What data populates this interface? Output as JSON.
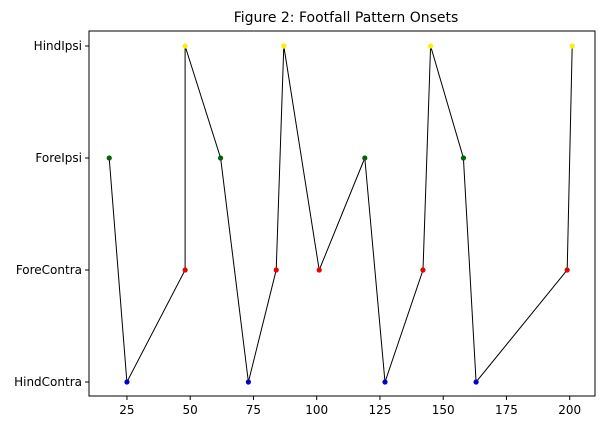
{
  "chart_data": {
    "type": "line",
    "title": "Figure 2: Footfall Pattern Onsets",
    "xlabel": "",
    "ylabel": "",
    "xlim": [
      10,
      210
    ],
    "x_ticks": [
      "25",
      "50",
      "75",
      "100",
      "125",
      "150",
      "175",
      "200"
    ],
    "x_tick_values": [
      25,
      50,
      75,
      100,
      125,
      150,
      175,
      200
    ],
    "categories": [
      "HindContra",
      "ForeContra",
      "ForeIpsi",
      "HindIpsi"
    ],
    "grid": false,
    "legend": "none",
    "line_color": "#000000",
    "category_colors": {
      "HindContra": "#0000cc",
      "ForeContra": "#ee0000",
      "ForeIpsi": "#006600",
      "HindIpsi": "#ffee00"
    },
    "points": [
      {
        "x": 18,
        "y": "ForeIpsi"
      },
      {
        "x": 25,
        "y": "HindContra"
      },
      {
        "x": 48,
        "y": "ForeContra"
      },
      {
        "x": 48,
        "y": "HindIpsi"
      },
      {
        "x": 62,
        "y": "ForeIpsi"
      },
      {
        "x": 73,
        "y": "HindContra"
      },
      {
        "x": 84,
        "y": "ForeContra"
      },
      {
        "x": 87,
        "y": "HindIpsi"
      },
      {
        "x": 101,
        "y": "ForeContra"
      },
      {
        "x": 119,
        "y": "ForeIpsi"
      },
      {
        "x": 127,
        "y": "HindContra"
      },
      {
        "x": 142,
        "y": "ForeContra"
      },
      {
        "x": 145,
        "y": "HindIpsi"
      },
      {
        "x": 158,
        "y": "ForeIpsi"
      },
      {
        "x": 163,
        "y": "HindContra"
      },
      {
        "x": 199,
        "y": "ForeContra"
      },
      {
        "x": 201,
        "y": "HindIpsi"
      }
    ]
  }
}
